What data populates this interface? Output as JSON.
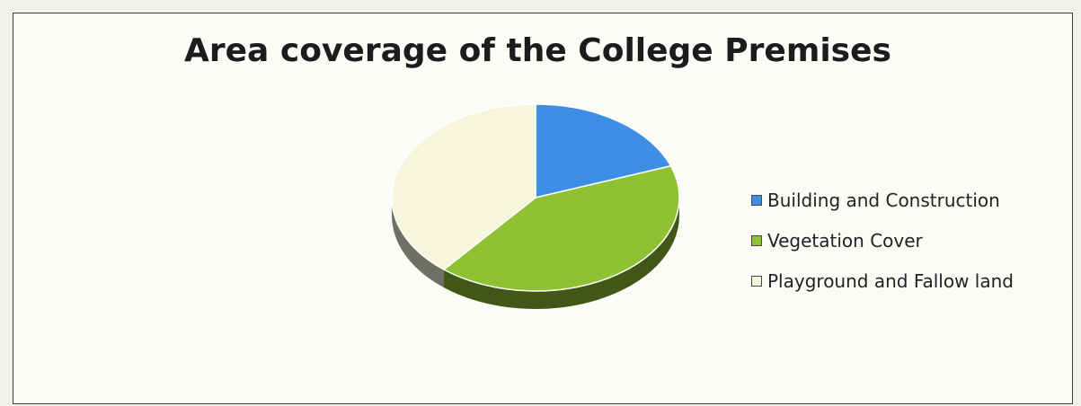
{
  "chart_data": {
    "type": "pie",
    "title": "Area coverage of the College Premises",
    "categories": [
      "Building and Construction",
      "Vegetation Cover",
      "Playground and Fallow land"
    ],
    "values": [
      19.5,
      41.5,
      39
    ],
    "colors": [
      "#3f8ee6",
      "#8fc232",
      "#f6f6dc"
    ],
    "legend_position": "right",
    "three_d": true
  }
}
